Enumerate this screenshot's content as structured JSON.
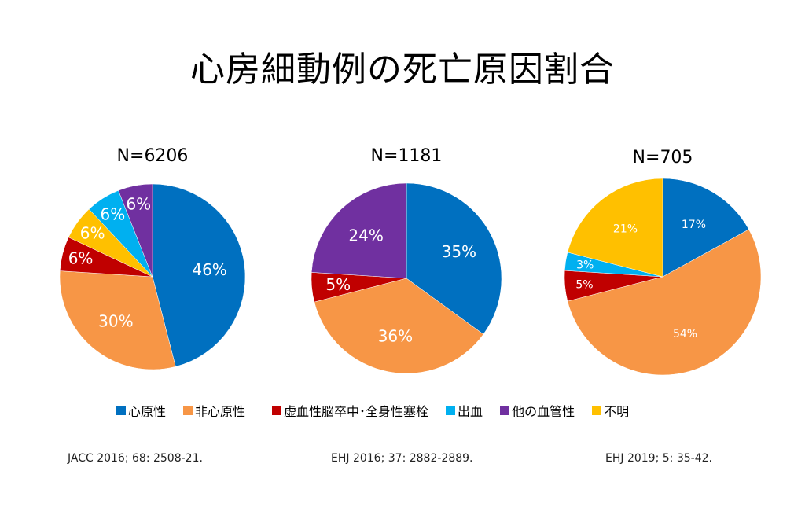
{
  "title": "心房細動例の死亡原因割合",
  "colors": {
    "cardiac": "#0070C0",
    "noncardiac": "#F79646",
    "stroke": "#C00000",
    "bleeding": "#00B0F0",
    "othervascular": "#7030A0",
    "unknown": "#FFC000"
  },
  "legend": [
    {
      "key": "cardiac",
      "label": "心原性"
    },
    {
      "key": "noncardiac",
      "label": "非心原性"
    },
    {
      "key": "stroke",
      "label": "虚血性脳卒中･全身性塞栓"
    },
    {
      "key": "bleeding",
      "label": "出血"
    },
    {
      "key": "othervascular",
      "label": "他の血管性"
    },
    {
      "key": "unknown",
      "label": "不明"
    }
  ],
  "chart_data": [
    {
      "type": "pie",
      "title": "N=6206",
      "citation": "JACC 2016; 68: 2508-21.",
      "slices": [
        {
          "key": "cardiac",
          "value": 46,
          "label": "46%"
        },
        {
          "key": "noncardiac",
          "value": 30,
          "label": "30%"
        },
        {
          "key": "stroke",
          "value": 6,
          "label": "6%"
        },
        {
          "key": "unknown",
          "value": 6,
          "label": "6%"
        },
        {
          "key": "bleeding",
          "value": 6,
          "label": "6%"
        },
        {
          "key": "othervascular",
          "value": 6,
          "label": "6%"
        }
      ]
    },
    {
      "type": "pie",
      "title": "N=1181",
      "citation": "EHJ 2016; 37: 2882-2889.",
      "slices": [
        {
          "key": "cardiac",
          "value": 35,
          "label": "35%"
        },
        {
          "key": "noncardiac",
          "value": 36,
          "label": "36%"
        },
        {
          "key": "stroke",
          "value": 5,
          "label": "5%"
        },
        {
          "key": "othervascular",
          "value": 24,
          "label": "24%"
        }
      ]
    },
    {
      "type": "pie",
      "title": "N=705",
      "citation": "EHJ 2019; 5: 35-42.",
      "slices": [
        {
          "key": "cardiac",
          "value": 17,
          "label": "17%"
        },
        {
          "key": "noncardiac",
          "value": 54,
          "label": "54%"
        },
        {
          "key": "stroke",
          "value": 5,
          "label": "5%"
        },
        {
          "key": "bleeding",
          "value": 3,
          "label": "3%"
        },
        {
          "key": "unknown",
          "value": 21,
          "label": "21%"
        }
      ]
    }
  ]
}
